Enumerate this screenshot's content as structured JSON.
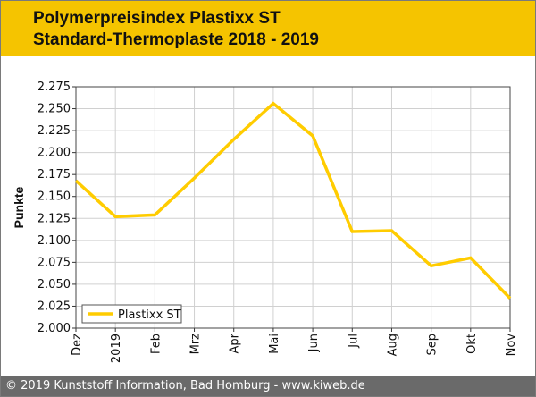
{
  "header": {
    "title": "Polymerpreisindex Plastixx ST",
    "subtitle": "Standard-Thermoplaste 2018 - 2019"
  },
  "footer": {
    "text": "© 2019 Kunststoff Information, Bad Homburg - www.kiweb.de"
  },
  "colors": {
    "header_bg": "#f5c400",
    "series_line": "#ffcc00",
    "footer_bg": "#6a6a6a",
    "grid": "#d0d0d0"
  },
  "chart_data": {
    "type": "line",
    "title": "",
    "xlabel": "",
    "ylabel": "Punkte",
    "categories": [
      "Dez",
      "2019",
      "Feb",
      "Mrz",
      "Apr",
      "Mai",
      "Jun",
      "Jul",
      "Aug",
      "Sep",
      "Okt",
      "Nov"
    ],
    "series": [
      {
        "name": "Plastixx ST",
        "values": [
          2.168,
          2.127,
          2.129,
          2.171,
          2.215,
          2.256,
          2.219,
          2.11,
          2.111,
          2.071,
          2.08,
          2.034
        ]
      }
    ],
    "ylim": [
      2.0,
      2.275
    ],
    "yticks": [
      "2.000",
      "2.025",
      "2.050",
      "2.075",
      "2.100",
      "2.125",
      "2.150",
      "2.175",
      "2.200",
      "2.225",
      "2.250",
      "2.275"
    ],
    "grid": true,
    "legend_position": "bottom-left"
  }
}
